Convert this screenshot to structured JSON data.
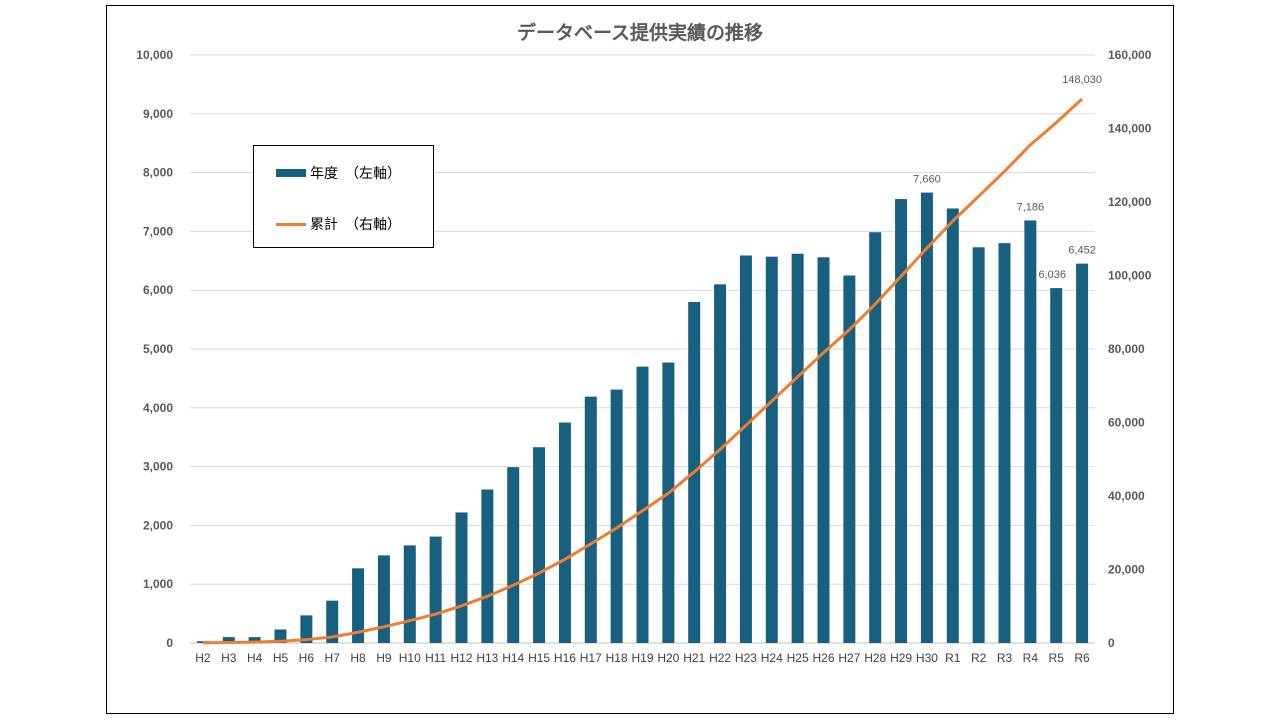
{
  "chart_data": {
    "type": "bar+line",
    "title": "データベース提供実績の推移",
    "categories": [
      "H2",
      "H3",
      "H4",
      "H5",
      "H6",
      "H7",
      "H8",
      "H9",
      "H10",
      "H11",
      "H12",
      "H13",
      "H14",
      "H15",
      "H16",
      "H17",
      "H18",
      "H19",
      "H20",
      "H21",
      "H22",
      "H23",
      "H24",
      "H25",
      "H26",
      "H27",
      "H28",
      "H29",
      "H30",
      "R1",
      "R2",
      "R3",
      "R4",
      "R5",
      "R6"
    ],
    "series": [
      {
        "name": "年度　（左軸）",
        "type": "bar",
        "axis": "left",
        "color": "#17607f",
        "values": [
          30,
          100,
          100,
          230,
          470,
          720,
          1270,
          1490,
          1660,
          1810,
          2220,
          2610,
          2990,
          3330,
          3750,
          4190,
          4310,
          4700,
          4770,
          5800,
          6100,
          6590,
          6570,
          6620,
          6560,
          6250,
          6986,
          7550,
          7660,
          7390,
          6730,
          6800,
          7186,
          6036,
          6452
        ]
      },
      {
        "name": "累計　（右軸）",
        "type": "line",
        "axis": "right",
        "color": "#ed7d31",
        "cumulative_of": 0
      }
    ],
    "data_labels": [
      {
        "category": "H30",
        "series": 0,
        "text": "7,660"
      },
      {
        "category": "R4",
        "series": 0,
        "text": "7,186"
      },
      {
        "category": "R5",
        "series": 0,
        "text": "6,036"
      },
      {
        "category": "R6",
        "series": 0,
        "text": "6,452"
      },
      {
        "category": "R6",
        "series": 1,
        "text": "148,030"
      }
    ],
    "y_left": {
      "min": 0,
      "max": 10000,
      "step": 1000,
      "ticks": [
        "0",
        "1,000",
        "2,000",
        "3,000",
        "4,000",
        "5,000",
        "6,000",
        "7,000",
        "8,000",
        "9,000",
        "10,000"
      ]
    },
    "y_right": {
      "min": 0,
      "max": 160000,
      "step": 20000,
      "ticks": [
        "0",
        "20,000",
        "40,000",
        "60,000",
        "80,000",
        "100,000",
        "120,000",
        "140,000",
        "160,000"
      ]
    },
    "grid": true,
    "legend_position": "top-left"
  }
}
